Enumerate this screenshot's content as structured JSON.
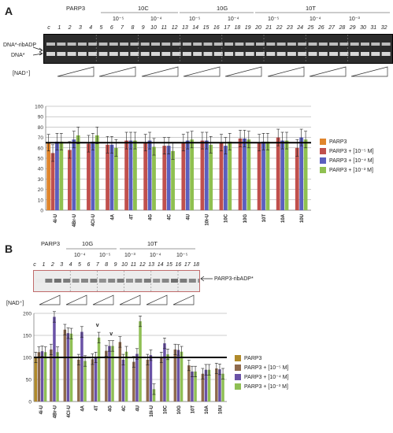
{
  "panel_a": {
    "letter": "A",
    "header_groups": [
      "PARP3",
      "10C",
      "10G",
      "10T"
    ],
    "concentrations": [
      "10⁻⁵",
      "10⁻⁴",
      "10⁻⁵",
      "10⁻⁴",
      "10⁻⁵",
      "10⁻⁴",
      "10⁻³"
    ],
    "lane_numbers": [
      "c",
      "1",
      "2",
      "3",
      "4",
      "5",
      "6",
      "7",
      "8",
      "9",
      "10",
      "11",
      "12",
      "13",
      "14",
      "15",
      "16",
      "17",
      "18",
      "19",
      "20",
      "21",
      "22",
      "23",
      "24",
      "25",
      "26",
      "27",
      "28",
      "29",
      "30",
      "31",
      "32"
    ],
    "band_labels": {
      "upper": "DNA*-ribADP",
      "lower": "DNA*"
    },
    "nad_label": "[NAD⁺]"
  },
  "panel_b": {
    "letter": "B",
    "header_groups": [
      "PARP3",
      "10G",
      "10T"
    ],
    "concentrations": [
      "10⁻⁴",
      "10⁻⁵",
      "10⁻³",
      "10⁻⁴",
      "10⁻⁵"
    ],
    "lane_numbers": [
      "c",
      "1",
      "2",
      "3",
      "4",
      "5",
      "6",
      "7",
      "8",
      "9",
      "10",
      "11",
      "12",
      "13",
      "14",
      "15",
      "16",
      "17",
      "18"
    ],
    "band_label": "PARP3-ribADP*",
    "nad_label": "[NAD⁺]"
  },
  "legend": {
    "items": [
      "PARP3",
      "PARP3 + [10⁻⁵ M]",
      "PARP3 + [10⁻⁴ M]",
      "PARP3 + [10⁻³ M]"
    ]
  },
  "colors": {
    "parp3_a": "#e0852c",
    "c5_a": "#c0504d",
    "c4": "#5b5fbf",
    "c3": "#8fc050",
    "parp3_b": "#b08a2a",
    "c5_b": "#8e6a4c",
    "c4_b": "#6a52a6",
    "c3_b": "#8fbf54"
  },
  "chart_data": [
    {
      "type": "bar",
      "categories": [
        "4i-U",
        "4Br-U",
        "4Cl-U",
        "4A",
        "4T",
        "4G",
        "4C",
        "4U",
        "10i-U",
        "10C",
        "10G",
        "10T",
        "10A",
        "10U"
      ],
      "series": [
        {
          "name": "PARP3",
          "values": [
            65,
            null,
            null,
            null,
            null,
            null,
            null,
            null,
            null,
            null,
            null,
            null,
            null,
            null
          ]
        },
        {
          "name": "PARP3 + [10⁻⁵ M]",
          "values": [
            55,
            58,
            64,
            63,
            67,
            65,
            62,
            65,
            67,
            65,
            69,
            65,
            70,
            60
          ]
        },
        {
          "name": "PARP3 + [10⁻⁴ M]",
          "values": [
            66,
            68,
            66,
            63,
            67,
            67,
            62,
            67,
            67,
            62,
            69,
            66,
            67,
            70
          ]
        },
        {
          "name": "PARP3 + [10⁻³ M]",
          "values": [
            66,
            72,
            72,
            60,
            67,
            61,
            57,
            68,
            63,
            66,
            68,
            66,
            67,
            68
          ]
        }
      ],
      "ytick_labels": [
        "0",
        "10",
        "20",
        "30",
        "40",
        "50",
        "60",
        "70",
        "80",
        "90",
        "100"
      ],
      "ylim": [
        0,
        100
      ],
      "reference_line": 65,
      "grid": true
    },
    {
      "type": "bar",
      "categories": [
        "4i-U",
        "4Br-U",
        "4Cl-U",
        "4A",
        "4T",
        "4G",
        "4C",
        "4U",
        "10i-U",
        "10C",
        "10G",
        "10T",
        "10A",
        "10U"
      ],
      "series": [
        {
          "name": "PARP3",
          "values": [
            100,
            null,
            null,
            null,
            null,
            null,
            null,
            null,
            null,
            null,
            null,
            null,
            null,
            null
          ]
        },
        {
          "name": "PARP3 + [10⁻⁵ M]",
          "values": [
            112,
            118,
            163,
            95,
            96,
            115,
            135,
            90,
            95,
            100,
            118,
            82,
            63,
            75
          ]
        },
        {
          "name": "PARP3 + [10⁻⁴ M]",
          "values": [
            114,
            192,
            155,
            158,
            100,
            126,
            95,
            108,
            105,
            132,
            117,
            68,
            72,
            73
          ]
        },
        {
          "name": "PARP3 + [10⁻³ M]",
          "values": [
            112,
            112,
            154,
            92,
            145,
            126,
            113,
            182,
            28,
            107,
            113,
            68,
            72,
            63
          ]
        }
      ],
      "ytick_labels": [
        "0",
        "50",
        "100",
        "150",
        "200"
      ],
      "ylim": [
        0,
        200
      ],
      "reference_line": 100,
      "grid": true,
      "annotations": [
        "v",
        "v"
      ]
    }
  ]
}
